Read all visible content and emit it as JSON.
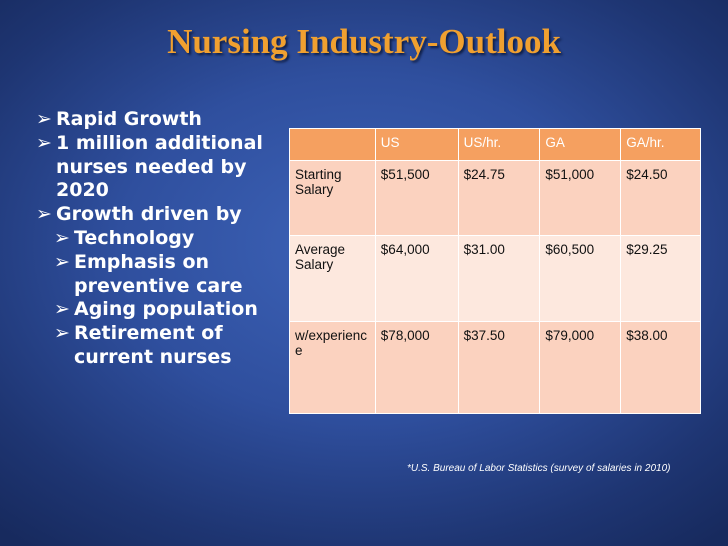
{
  "slide": {
    "title": "Nursing Industry-Outlook",
    "arrow_glyph": "➢",
    "bullets": [
      {
        "level": 1,
        "text": "Rapid Growth"
      },
      {
        "level": 1,
        "text": "1 million additional nurses needed by 2020"
      },
      {
        "level": 1,
        "text": "Growth driven by"
      },
      {
        "level": 2,
        "text": "Technology"
      },
      {
        "level": 2,
        "text": "Emphasis on preventive care"
      },
      {
        "level": 2,
        "text": "Aging population"
      },
      {
        "level": 2,
        "text": "Retirement of current nurses"
      }
    ],
    "table": {
      "headers": [
        "",
        "US",
        "US/hr.",
        "GA",
        "GA/hr."
      ],
      "rows": [
        [
          "Starting Salary",
          "$51,500",
          "$24.75",
          "$51,000",
          "$24.50"
        ],
        [
          "Average Salary",
          "$64,000",
          "$31.00",
          "$60,500",
          "$29.25"
        ],
        [
          "w/experience",
          "$78,000",
          "$37.50",
          "$79,000",
          "$38.00"
        ]
      ]
    },
    "footnote": "*U.S. Bureau of Labor Statistics (survey of salaries in 2010)",
    "colors": {
      "title": "#f0a030",
      "header_fill": "#f5a060",
      "row_fill_dark": "#fbd2bf",
      "row_fill_light": "#fde8de"
    }
  }
}
